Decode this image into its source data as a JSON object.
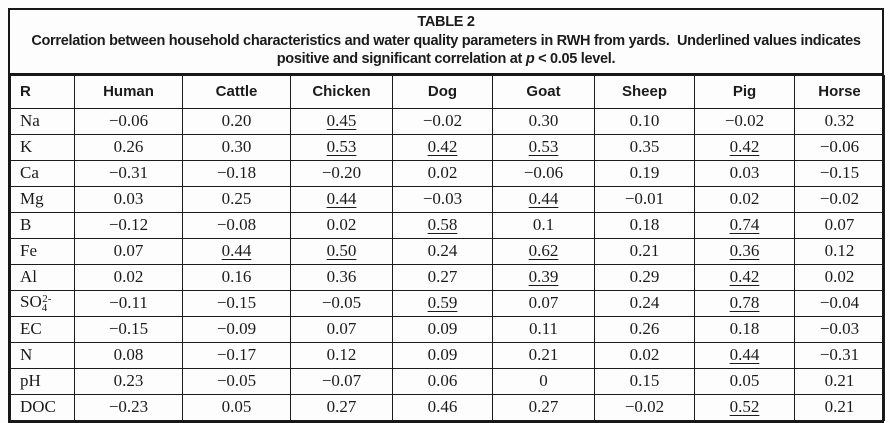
{
  "table": {
    "title": "TABLE 2",
    "caption": {
      "pre": "Correlation between household characteristics and water quality parameters in RWH from yards.  Underlined values indicates positive and significant correlation at ",
      "italic": "p",
      "post": " < 0.05 level."
    },
    "columns": [
      "R",
      "Human",
      "Cattle",
      "Chicken",
      "Dog",
      "Goat",
      "Sheep",
      "Pig",
      "Horse"
    ],
    "rows": [
      {
        "label_parts": [
          {
            "t": "Na"
          }
        ],
        "cells": [
          {
            "v": "−0.06"
          },
          {
            "v": "0.20"
          },
          {
            "v": "0.45",
            "u": true
          },
          {
            "v": "−0.02"
          },
          {
            "v": "0.30"
          },
          {
            "v": "0.10"
          },
          {
            "v": "−0.02"
          },
          {
            "v": "0.32"
          }
        ]
      },
      {
        "label_parts": [
          {
            "t": "K"
          }
        ],
        "cells": [
          {
            "v": "0.26"
          },
          {
            "v": "0.30"
          },
          {
            "v": "0.53",
            "u": true
          },
          {
            "v": "0.42",
            "u": true
          },
          {
            "v": "0.53",
            "u": true
          },
          {
            "v": "0.35"
          },
          {
            "v": "0.42",
            "u": true
          },
          {
            "v": "−0.06"
          }
        ]
      },
      {
        "label_parts": [
          {
            "t": "Ca"
          }
        ],
        "cells": [
          {
            "v": "−0.31"
          },
          {
            "v": "−0.18"
          },
          {
            "v": "−0.20"
          },
          {
            "v": "0.02"
          },
          {
            "v": "−0.06"
          },
          {
            "v": "0.19"
          },
          {
            "v": "0.03"
          },
          {
            "v": "−0.15"
          }
        ]
      },
      {
        "label_parts": [
          {
            "t": "Mg"
          }
        ],
        "cells": [
          {
            "v": "0.03"
          },
          {
            "v": "0.25"
          },
          {
            "v": "0.44",
            "u": true
          },
          {
            "v": "−0.03"
          },
          {
            "v": "0.44",
            "u": true
          },
          {
            "v": "−0.01"
          },
          {
            "v": "0.02"
          },
          {
            "v": "−0.02"
          }
        ]
      },
      {
        "label_parts": [
          {
            "t": "B"
          }
        ],
        "cells": [
          {
            "v": "−0.12"
          },
          {
            "v": "−0.08"
          },
          {
            "v": "0.02"
          },
          {
            "v": "0.58",
            "u": true
          },
          {
            "v": "0.1"
          },
          {
            "v": "0.18"
          },
          {
            "v": "0.74",
            "u": true
          },
          {
            "v": "0.07"
          }
        ]
      },
      {
        "label_parts": [
          {
            "t": "Fe"
          }
        ],
        "cells": [
          {
            "v": "0.07"
          },
          {
            "v": "0.44",
            "u": true
          },
          {
            "v": "0.50",
            "u": true
          },
          {
            "v": "0.24"
          },
          {
            "v": "0.62",
            "u": true
          },
          {
            "v": "0.21"
          },
          {
            "v": "0.36",
            "u": true
          },
          {
            "v": "0.12"
          }
        ]
      },
      {
        "label_parts": [
          {
            "t": "Al"
          }
        ],
        "cells": [
          {
            "v": "0.02"
          },
          {
            "v": "0.16"
          },
          {
            "v": "0.36"
          },
          {
            "v": "0.27"
          },
          {
            "v": "0.39",
            "u": true
          },
          {
            "v": "0.29"
          },
          {
            "v": "0.42",
            "u": true
          },
          {
            "v": "0.02"
          }
        ]
      },
      {
        "label_parts": [
          {
            "t": "SO"
          },
          {
            "t": "4",
            "style": "sub"
          },
          {
            "t": "2-",
            "style": "sup"
          }
        ],
        "cells": [
          {
            "v": "−0.11"
          },
          {
            "v": "−0.15"
          },
          {
            "v": "−0.05"
          },
          {
            "v": "0.59",
            "u": true
          },
          {
            "v": "0.07"
          },
          {
            "v": "0.24"
          },
          {
            "v": "0.78",
            "u": true
          },
          {
            "v": "−0.04"
          }
        ]
      },
      {
        "label_parts": [
          {
            "t": "EC"
          }
        ],
        "cells": [
          {
            "v": "−0.15"
          },
          {
            "v": "−0.09"
          },
          {
            "v": "0.07"
          },
          {
            "v": "0.09"
          },
          {
            "v": "0.11"
          },
          {
            "v": "0.26"
          },
          {
            "v": "0.18"
          },
          {
            "v": "−0.03"
          }
        ]
      },
      {
        "label_parts": [
          {
            "t": "N"
          }
        ],
        "cells": [
          {
            "v": "0.08"
          },
          {
            "v": "−0.17"
          },
          {
            "v": "0.12"
          },
          {
            "v": "0.09"
          },
          {
            "v": "0.21"
          },
          {
            "v": "0.02"
          },
          {
            "v": "0.44",
            "u": true
          },
          {
            "v": "−0.31"
          }
        ]
      },
      {
        "label_parts": [
          {
            "t": "pH"
          }
        ],
        "cells": [
          {
            "v": "0.23"
          },
          {
            "v": "−0.05"
          },
          {
            "v": "−0.07"
          },
          {
            "v": "0.06"
          },
          {
            "v": "0"
          },
          {
            "v": "0.15"
          },
          {
            "v": "0.05"
          },
          {
            "v": "0.21"
          }
        ]
      },
      {
        "label_parts": [
          {
            "t": "DOC"
          }
        ],
        "cells": [
          {
            "v": "−0.23"
          },
          {
            "v": "0.05"
          },
          {
            "v": "0.27"
          },
          {
            "v": "0.46"
          },
          {
            "v": "0.27"
          },
          {
            "v": "−0.02"
          },
          {
            "v": "0.52",
            "u": true
          },
          {
            "v": "0.21"
          }
        ]
      }
    ]
  }
}
